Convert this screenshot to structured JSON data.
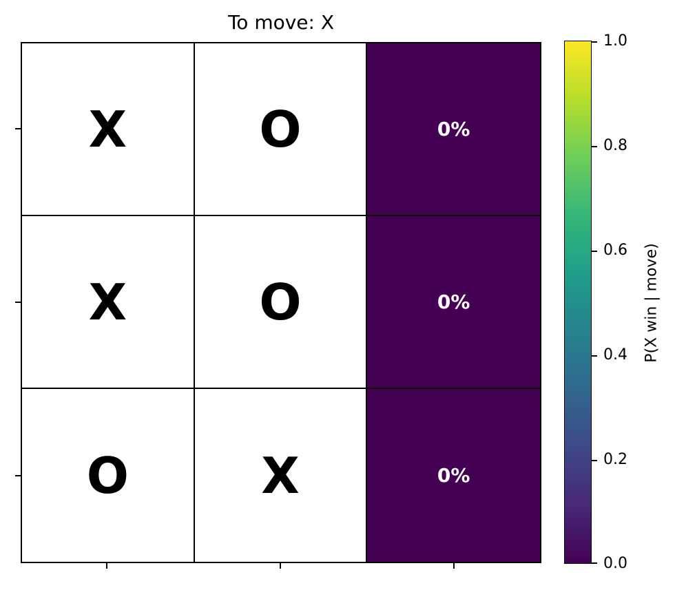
{
  "title": "To move: X",
  "board": {
    "rows": [
      [
        {
          "mark": "X",
          "prob": ""
        },
        {
          "mark": "O",
          "prob": ""
        },
        {
          "mark": "",
          "prob": "0%",
          "value": 0.0
        }
      ],
      [
        {
          "mark": "X",
          "prob": ""
        },
        {
          "mark": "O",
          "prob": ""
        },
        {
          "mark": "",
          "prob": "0%",
          "value": 0.0
        }
      ],
      [
        {
          "mark": "O",
          "prob": ""
        },
        {
          "mark": "X",
          "prob": ""
        },
        {
          "mark": "",
          "prob": "0%",
          "value": 0.0
        }
      ]
    ],
    "empty_cell_color": "#440154",
    "mark_color": "#000000"
  },
  "colorbar": {
    "label": "P(X win | move)",
    "ticks": [
      "0.0",
      "0.2",
      "0.4",
      "0.6",
      "0.8",
      "1.0"
    ],
    "colormap": "viridis",
    "range": [
      0.0,
      1.0
    ]
  }
}
